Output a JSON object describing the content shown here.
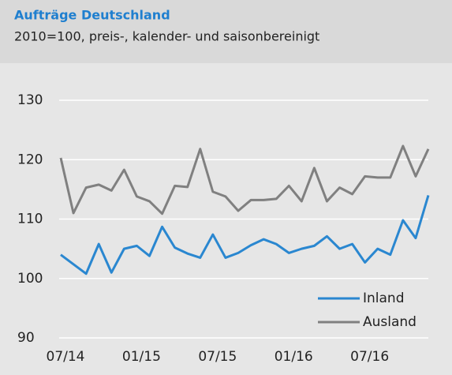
{
  "chart_data": {
    "type": "line",
    "title": "Aufträge Deutschland",
    "subtitle": "2010=100, preis-, kalender- und saisonbereinigt",
    "categories": [
      "07/14",
      null,
      null,
      null,
      null,
      null,
      "01/15",
      null,
      null,
      null,
      null,
      null,
      "07/15",
      null,
      null,
      null,
      null,
      null,
      "01/16",
      null,
      null,
      null,
      null,
      null,
      "07/16",
      null,
      null,
      null,
      null,
      null
    ],
    "series": [
      {
        "name": "Inland",
        "color": "#2a87d0",
        "values": [
          104.0,
          102.4,
          100.8,
          105.8,
          101.0,
          105.0,
          105.5,
          103.8,
          108.7,
          105.2,
          104.2,
          103.5,
          107.4,
          103.5,
          104.3,
          105.6,
          106.6,
          105.8,
          104.3,
          105.0,
          105.5,
          107.1,
          105.0,
          105.8,
          102.7,
          105.0,
          104.0,
          109.8,
          106.8,
          114.0
        ]
      },
      {
        "name": "Ausland",
        "color": "#808080",
        "values": [
          120.3,
          111.0,
          115.3,
          115.8,
          114.8,
          118.3,
          113.8,
          113.0,
          110.9,
          115.6,
          115.4,
          121.8,
          114.6,
          113.8,
          111.4,
          113.2,
          113.2,
          113.4,
          115.6,
          113.0,
          118.6,
          113.0,
          115.3,
          114.2,
          117.2,
          117.0,
          117.0,
          122.3,
          117.2,
          121.8
        ]
      }
    ],
    "ylim": [
      90,
      130
    ],
    "yticks": [
      90,
      100,
      110,
      120,
      130
    ],
    "grid": true,
    "legend": "lower right"
  }
}
